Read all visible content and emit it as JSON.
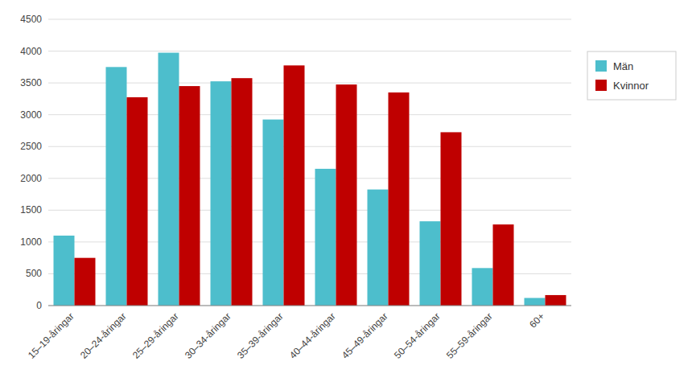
{
  "chart_data": {
    "type": "bar",
    "categories": [
      "15–19-åringar",
      "20–24-åringar",
      "25–29-åringar",
      "30–34-åringar",
      "35–39-åringar",
      "40–44-åringar",
      "45–49-åringar",
      "50–54-åringar",
      "55–59-åringar",
      "60+"
    ],
    "series": [
      {
        "name": "Män",
        "color": "#4DBECC",
        "values": [
          1100,
          3750,
          3975,
          3525,
          2925,
          2150,
          1825,
          1325,
          590,
          120
        ]
      },
      {
        "name": "Kvinnor",
        "color": "#BF0000",
        "values": [
          750,
          3275,
          3450,
          3575,
          3775,
          3475,
          3350,
          2725,
          1275,
          165
        ]
      }
    ],
    "ylim": [
      0,
      4500
    ],
    "yticks": [
      0,
      500,
      1000,
      1500,
      2000,
      2500,
      3000,
      3500,
      4000,
      4500
    ],
    "grid": true,
    "legend": "right"
  }
}
